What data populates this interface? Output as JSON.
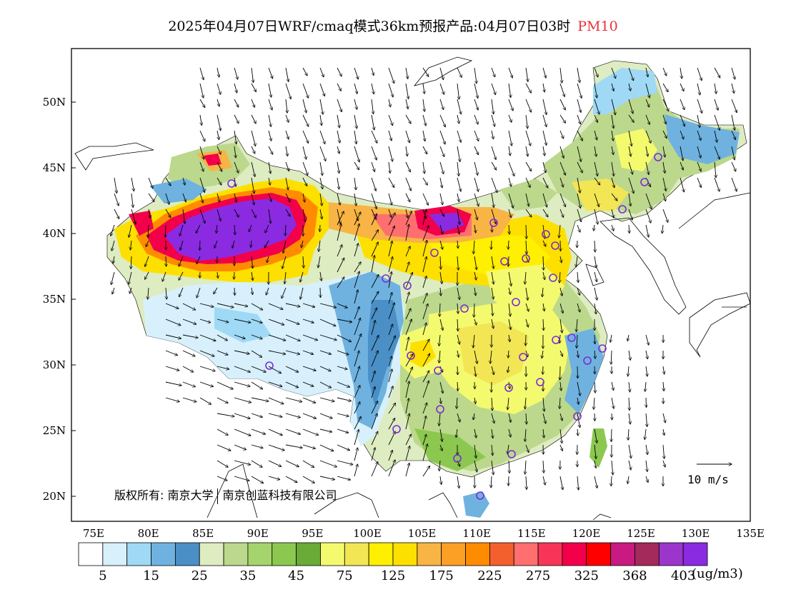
{
  "title": {
    "main": "2025年04月07日WRF/cmaq模式36km预报产品:04月07日03时",
    "pollutant": "PM10",
    "pollutant_color": "#e8303a"
  },
  "axes": {
    "lat_labels": [
      "50N",
      "45N",
      "40N",
      "35N",
      "30N",
      "25N",
      "20N"
    ],
    "lon_labels": [
      "75E",
      "80E",
      "85E",
      "90E",
      "95E",
      "100E",
      "105E",
      "110E",
      "115E",
      "120E",
      "125E",
      "130E",
      "135E"
    ]
  },
  "legend": {
    "colors": [
      "#ffffff",
      "#d7f0fb",
      "#9fd9f5",
      "#6fb2e0",
      "#4a8fc6",
      "#deecc2",
      "#bcd88c",
      "#a6d46c",
      "#8cc850",
      "#6aaa36",
      "#f4fa6e",
      "#f2e654",
      "#ffef00",
      "#fde000",
      "#f8b444",
      "#fba025",
      "#ff8c00",
      "#f45f2e",
      "#ff6f6f",
      "#f73558",
      "#f2004a",
      "#ff0000",
      "#c81a80",
      "#a32a5a",
      "#9b35cc",
      "#8a2be2"
    ],
    "tick_labels": [
      "5",
      "15",
      "25",
      "35",
      "45",
      "75",
      "125",
      "175",
      "225",
      "275",
      "325",
      "368",
      "403"
    ],
    "unit": "(ug/m3)"
  },
  "wind_scale": {
    "label": "10 m/s"
  },
  "copyright": {
    "left": "版权所有: 南京大学",
    "right": "南京创蓝科技有限公司"
  },
  "cities_marker_color": "#7a2bd6"
}
